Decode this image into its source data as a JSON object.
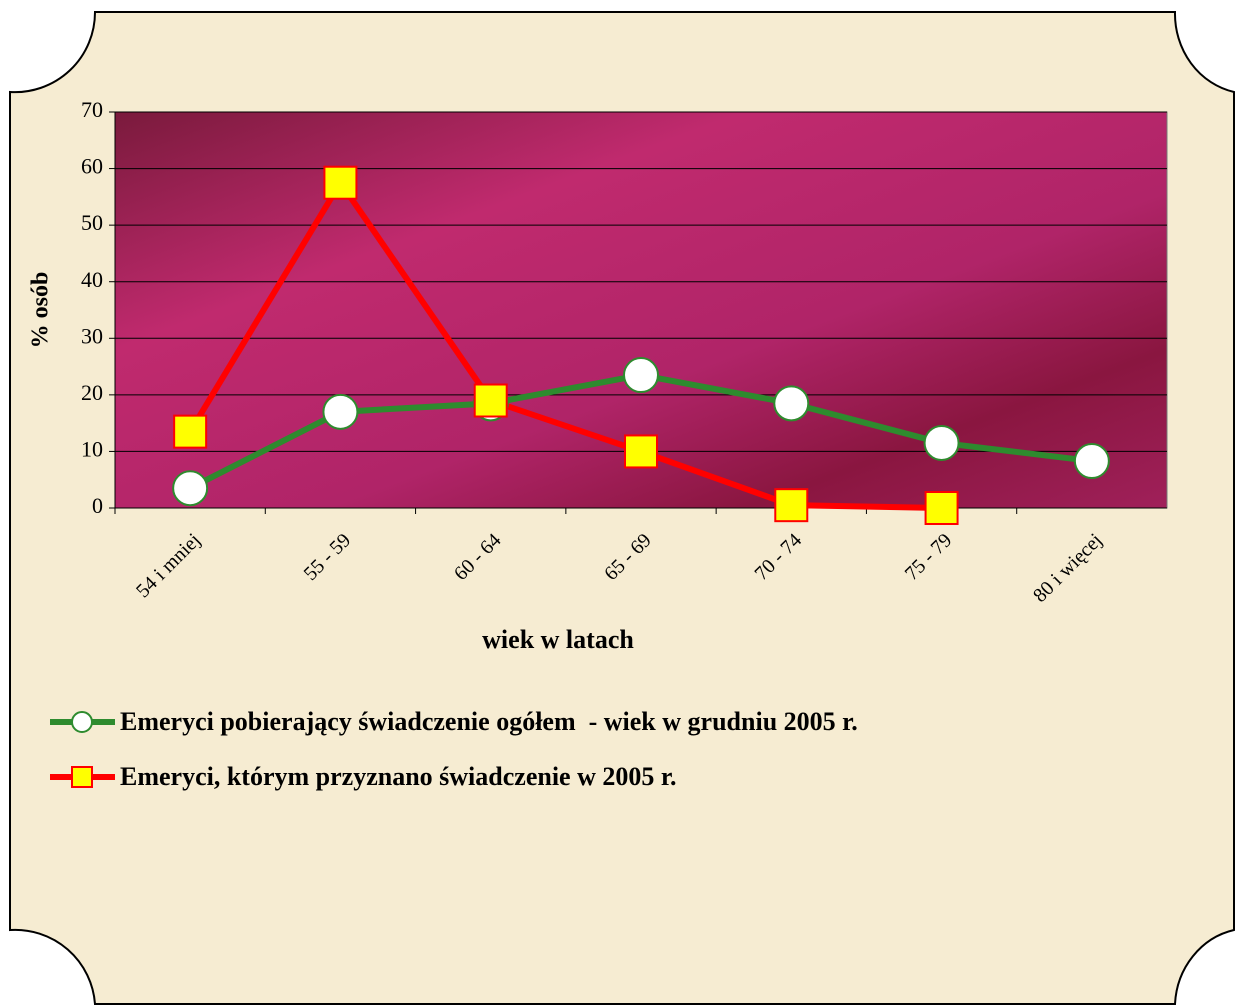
{
  "chart_data": {
    "type": "line",
    "categories": [
      "54 i mniej",
      "55 - 59",
      "60 - 64",
      "65 - 69",
      "70 - 74",
      "75 - 79",
      "80 i więcej"
    ],
    "series": [
      {
        "name": "Emeryci pobierający świadczenie ogółem  - wiek w grudniu 2005 r.",
        "color": "#2e8b2e",
        "marker": "circle",
        "values": [
          3.5,
          17,
          18.5,
          23.5,
          18.5,
          11.5,
          8.3
        ]
      },
      {
        "name": "Emeryci, którym przyznano świadczenie w 2005 r.",
        "color": "#ff0000",
        "marker": "square",
        "values": [
          13.5,
          57.5,
          19,
          10,
          0.5,
          0,
          null
        ]
      }
    ],
    "xlabel": "wiek w latach",
    "ylabel": "% osób",
    "ylim": [
      0,
      70
    ],
    "yticks": [
      0,
      10,
      20,
      30,
      40,
      50,
      60,
      70
    ],
    "grid": true
  }
}
